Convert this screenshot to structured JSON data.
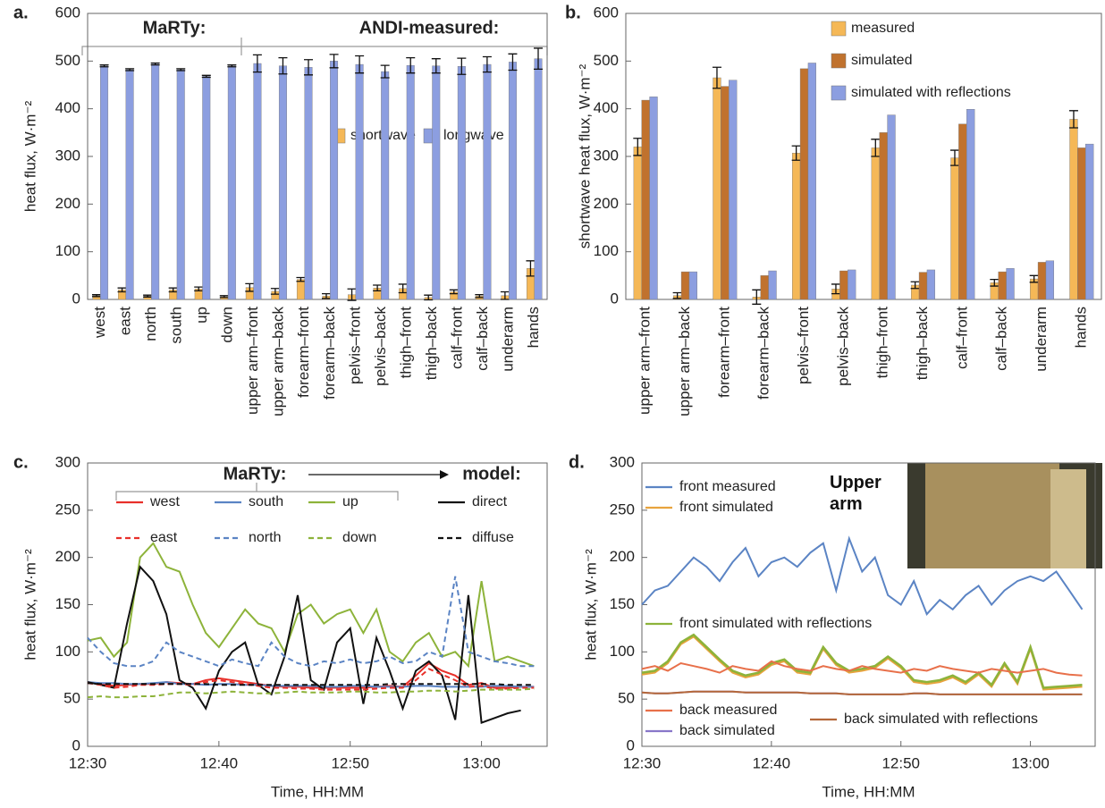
{
  "chart_data": [
    {
      "type": "bar",
      "panel_label": "a.",
      "ylabel": "heat flux, W·m⁻²",
      "annotations": [
        "MaRTy:",
        "ANDI-measured:"
      ],
      "categories": [
        "west",
        "east",
        "north",
        "south",
        "up",
        "down",
        "upper arm–front",
        "upper arm–back",
        "forearm–front",
        "forearm–back",
        "pelvis–front",
        "pelvis–back",
        "thigh–front",
        "thigh–back",
        "calf–front",
        "calf–back",
        "underarm",
        "hands"
      ],
      "series": [
        {
          "name": "shortwave",
          "color": "#f5b857",
          "values": [
            8,
            20,
            7,
            20,
            22,
            6,
            25,
            17,
            42,
            7,
            10,
            24,
            23,
            4,
            16,
            7,
            8,
            65
          ],
          "errors": [
            2,
            4,
            2,
            4,
            4,
            2,
            8,
            6,
            4,
            5,
            12,
            6,
            9,
            5,
            4,
            3,
            8,
            16
          ]
        },
        {
          "name": "longwave",
          "color": "#8c9ee0",
          "values": [
            490,
            482,
            494,
            482,
            468,
            490,
            495,
            490,
            487,
            500,
            493,
            478,
            491,
            490,
            489,
            493,
            498,
            505
          ],
          "errors": [
            2,
            2,
            2,
            2,
            2,
            2,
            18,
            17,
            16,
            14,
            18,
            13,
            16,
            15,
            17,
            16,
            17,
            22
          ]
        }
      ],
      "ylim": [
        0,
        600
      ],
      "yticks": [
        0,
        100,
        200,
        300,
        400,
        500,
        600
      ]
    },
    {
      "type": "bar",
      "panel_label": "b.",
      "ylabel": "shortwave heat flux, W·m⁻²",
      "categories": [
        "upper arm–front",
        "upper arm–back",
        "forearm–front",
        "forearm–back",
        "pelvis–front",
        "pelvis–back",
        "thigh–front",
        "thigh–back",
        "calf–front",
        "calf–back",
        "underarm",
        "hands"
      ],
      "series": [
        {
          "name": "measured",
          "color": "#f5b857",
          "values": [
            320,
            8,
            465,
            5,
            307,
            22,
            318,
            30,
            297,
            35,
            43,
            378
          ],
          "errors": [
            18,
            6,
            22,
            15,
            15,
            10,
            18,
            7,
            16,
            7,
            7,
            18
          ]
        },
        {
          "name": "simulated",
          "color": "#c0722e",
          "values": [
            418,
            58,
            447,
            50,
            484,
            60,
            350,
            57,
            368,
            58,
            78,
            318
          ]
        },
        {
          "name": "simulated with reflections",
          "color": "#8c9ee0",
          "values": [
            425,
            58,
            460,
            60,
            496,
            62,
            387,
            62,
            399,
            65,
            81,
            326
          ]
        }
      ],
      "ylim": [
        0,
        600
      ],
      "yticks": [
        0,
        100,
        200,
        300,
        400,
        500,
        600
      ]
    },
    {
      "type": "line",
      "panel_label": "c.",
      "ylabel": "heat flux, W·m⁻²",
      "xlabel": "Time, HH:MM",
      "annotations": [
        "MaRTy:",
        "model:"
      ],
      "x": [
        "12:30",
        "12:31",
        "12:32",
        "12:33",
        "12:34",
        "12:35",
        "12:36",
        "12:37",
        "12:38",
        "12:39",
        "12:40",
        "12:41",
        "12:42",
        "12:43",
        "12:44",
        "12:45",
        "12:46",
        "12:47",
        "12:48",
        "12:49",
        "12:50",
        "12:51",
        "12:52",
        "12:53",
        "12:54",
        "12:55",
        "12:56",
        "12:57",
        "12:58",
        "12:59",
        "13:00",
        "13:01",
        "13:02",
        "13:03",
        "13:04"
      ],
      "series": [
        {
          "name": "west",
          "color": "#e8302a",
          "dash": false,
          "values": [
            68,
            66,
            64,
            65,
            66,
            66,
            68,
            67,
            66,
            70,
            72,
            70,
            68,
            66,
            64,
            63,
            63,
            62,
            62,
            62,
            62,
            62,
            63,
            64,
            63,
            75,
            88,
            80,
            75,
            65,
            67,
            62,
            62,
            63,
            63
          ]
        },
        {
          "name": "south",
          "color": "#5b84c4",
          "dash": false,
          "values": [
            68,
            67,
            67,
            66,
            66,
            67,
            68,
            66,
            66,
            65,
            66,
            66,
            65,
            65,
            64,
            64,
            64,
            64,
            63,
            63,
            64,
            64,
            63,
            63,
            63,
            64,
            64,
            63,
            63,
            63,
            63,
            64,
            64,
            63,
            63
          ]
        },
        {
          "name": "up",
          "color": "#8db33a",
          "dash": false,
          "values": [
            112,
            115,
            95,
            110,
            200,
            215,
            190,
            185,
            150,
            120,
            105,
            125,
            145,
            130,
            125,
            100,
            140,
            150,
            130,
            140,
            145,
            120,
            145,
            100,
            90,
            110,
            120,
            95,
            100,
            85,
            175,
            90,
            95,
            90,
            85
          ]
        },
        {
          "name": "direct",
          "color": "#111111",
          "dash": false,
          "values": [
            68,
            65,
            62,
            130,
            190,
            175,
            140,
            70,
            62,
            40,
            80,
            100,
            110,
            65,
            55,
            95,
            160,
            70,
            60,
            110,
            125,
            45,
            115,
            80,
            40,
            80,
            90,
            75,
            28,
            160,
            25,
            30,
            35,
            38,
            null
          ]
        },
        {
          "name": "east",
          "color": "#e8302a",
          "dash": true,
          "values": [
            67,
            65,
            62,
            63,
            65,
            65,
            66,
            66,
            65,
            68,
            70,
            68,
            66,
            64,
            62,
            62,
            61,
            61,
            60,
            60,
            60,
            60,
            61,
            62,
            62,
            70,
            82,
            76,
            70,
            63,
            64,
            61,
            61,
            62,
            62
          ]
        },
        {
          "name": "north",
          "color": "#5b84c4",
          "dash": true,
          "values": [
            115,
            100,
            88,
            85,
            85,
            90,
            110,
            100,
            95,
            90,
            85,
            92,
            88,
            85,
            110,
            95,
            88,
            85,
            90,
            88,
            92,
            88,
            90,
            95,
            88,
            90,
            100,
            95,
            180,
            100,
            95,
            90,
            88,
            85,
            85
          ]
        },
        {
          "name": "down",
          "color": "#8db33a",
          "dash": true,
          "values": [
            52,
            53,
            52,
            52,
            53,
            53,
            55,
            57,
            57,
            56,
            57,
            58,
            57,
            56,
            56,
            57,
            58,
            57,
            57,
            57,
            58,
            58,
            57,
            57,
            58,
            58,
            59,
            59,
            58,
            59,
            60,
            60,
            60,
            60,
            61
          ]
        },
        {
          "name": "diffuse",
          "color": "#111111",
          "dash": true,
          "values": [
            67,
            66,
            66,
            66,
            66,
            66,
            66,
            66,
            66,
            66,
            65,
            65,
            65,
            65,
            65,
            65,
            65,
            65,
            65,
            65,
            65,
            65,
            65,
            66,
            66,
            66,
            66,
            66,
            66,
            66,
            66,
            66,
            65,
            65,
            65
          ]
        }
      ],
      "xlim": [
        "12:30",
        "13:05"
      ],
      "xticks": [
        "12:30",
        "12:40",
        "12:50",
        "13:00"
      ],
      "ylim": [
        0,
        300
      ],
      "yticks": [
        0,
        50,
        100,
        150,
        200,
        250,
        300
      ]
    },
    {
      "type": "line",
      "panel_label": "d.",
      "ylabel": "heat flux, W·m⁻²",
      "xlabel": "Time, HH:MM",
      "annotations": [
        "Upper arm"
      ],
      "x": [
        "12:30",
        "12:31",
        "12:32",
        "12:33",
        "12:34",
        "12:35",
        "12:36",
        "12:37",
        "12:38",
        "12:39",
        "12:40",
        "12:41",
        "12:42",
        "12:43",
        "12:44",
        "12:45",
        "12:46",
        "12:47",
        "12:48",
        "12:49",
        "12:50",
        "12:51",
        "12:52",
        "12:53",
        "12:54",
        "12:55",
        "12:56",
        "12:57",
        "12:58",
        "12:59",
        "13:00",
        "13:01",
        "13:02",
        "13:03",
        "13:04"
      ],
      "series": [
        {
          "name": "front measured",
          "color": "#5b84c4",
          "dash": false,
          "values": [
            150,
            165,
            170,
            185,
            200,
            190,
            175,
            195,
            210,
            180,
            195,
            200,
            190,
            205,
            215,
            165,
            220,
            185,
            200,
            160,
            150,
            175,
            140,
            155,
            145,
            160,
            170,
            150,
            165,
            175,
            180,
            175,
            185,
            165,
            145
          ]
        },
        {
          "name": "front simulated",
          "color": "#e8a33d",
          "dash": false,
          "values": [
            76,
            78,
            88,
            108,
            116,
            103,
            90,
            78,
            73,
            76,
            86,
            90,
            78,
            76,
            103,
            86,
            78,
            80,
            83,
            93,
            83,
            68,
            66,
            68,
            73,
            66,
            76,
            63,
            86,
            66,
            103,
            60,
            61,
            62,
            63
          ]
        },
        {
          "name": "front simulated with reflections",
          "color": "#8db33a",
          "dash": false,
          "values": [
            78,
            80,
            90,
            110,
            118,
            105,
            92,
            80,
            75,
            78,
            88,
            92,
            80,
            78,
            105,
            88,
            80,
            82,
            85,
            95,
            85,
            70,
            68,
            70,
            75,
            68,
            78,
            65,
            88,
            68,
            105,
            62,
            63,
            64,
            65
          ]
        },
        {
          "name": "back measured",
          "color": "#e8704a",
          "dash": false,
          "values": [
            82,
            85,
            80,
            88,
            85,
            82,
            78,
            85,
            82,
            80,
            90,
            85,
            82,
            80,
            85,
            82,
            80,
            85,
            82,
            80,
            78,
            82,
            80,
            85,
            82,
            80,
            78,
            82,
            80,
            78,
            80,
            82,
            78,
            76,
            75
          ]
        },
        {
          "name": "back simulated",
          "color": "#8877c9",
          "dash": false,
          "values": [
            57,
            56,
            56,
            57,
            58,
            58,
            58,
            58,
            57,
            57,
            57,
            57,
            57,
            56,
            56,
            56,
            55,
            55,
            55,
            55,
            55,
            56,
            56,
            55,
            55,
            55,
            55,
            55,
            55,
            55,
            55,
            55,
            55,
            55,
            55
          ]
        },
        {
          "name": "back simulated with reflections",
          "color": "#b5683a",
          "dash": false,
          "values": [
            57,
            56,
            56,
            57,
            58,
            58,
            58,
            58,
            57,
            57,
            57,
            57,
            57,
            56,
            56,
            56,
            55,
            55,
            55,
            55,
            55,
            56,
            56,
            55,
            55,
            55,
            55,
            55,
            55,
            55,
            55,
            55,
            55,
            55,
            55
          ]
        }
      ],
      "xlim": [
        "12:30",
        "13:05"
      ],
      "xticks": [
        "12:30",
        "12:40",
        "12:50",
        "13:00"
      ],
      "ylim": [
        0,
        300
      ],
      "yticks": [
        0,
        50,
        100,
        150,
        200,
        250,
        300
      ]
    }
  ]
}
